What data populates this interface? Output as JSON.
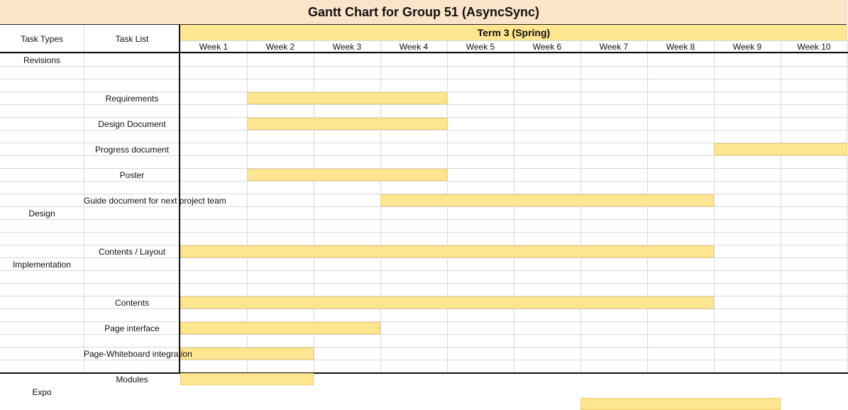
{
  "title": "Gantt Chart for Group 51 (AsyncSync)",
  "term_label": "Term 3 (Spring)",
  "headers": {
    "task_types": "Task Types",
    "task_list": "Task List"
  },
  "weeks": [
    "Week 1",
    "Week 2",
    "Week 3",
    "Week 4",
    "Week 5",
    "Week 6",
    "Week 7",
    "Week 8",
    "Week 9",
    "Week 10"
  ],
  "colors": {
    "title_bg": "#fce4c9",
    "term_bg": "#fee590",
    "bar": "#fee590"
  },
  "chart_data": {
    "type": "gantt",
    "title": "Gantt Chart for Group 51 (AsyncSync)",
    "period_label": "Term 3 (Spring)",
    "x_units": "weeks",
    "x_categories": [
      "Week 1",
      "Week 2",
      "Week 3",
      "Week 4",
      "Week 5",
      "Week 6",
      "Week 7",
      "Week 8",
      "Week 9",
      "Week 10"
    ],
    "rows": [
      {
        "type": "Revisions",
        "task": "",
        "start": null,
        "end": null
      },
      {
        "type": "",
        "task": "Requirements",
        "start": 2,
        "end": 4
      },
      {
        "type": "",
        "task": "Design Document",
        "start": 2,
        "end": 4
      },
      {
        "type": "",
        "task": "Progress document",
        "start": 9,
        "end": 10
      },
      {
        "type": "",
        "task": "Poster",
        "start": 2,
        "end": 4
      },
      {
        "type": "",
        "task": "Guide document for next project team",
        "start": 4,
        "end": 8
      },
      {
        "type": "Design",
        "task": "",
        "start": null,
        "end": null
      },
      {
        "type": "",
        "task": "Contents / Layout",
        "start": 1,
        "end": 8
      },
      {
        "type": "Implementation",
        "task": "",
        "start": null,
        "end": null
      },
      {
        "type": "",
        "task": "Contents",
        "start": 1,
        "end": 8
      },
      {
        "type": "",
        "task": "Page interface",
        "start": 1,
        "end": 3
      },
      {
        "type": "",
        "task": "Page-Whiteboard integration",
        "start": 1,
        "end": 2
      },
      {
        "type": "",
        "task": "Modules",
        "start": 1,
        "end": 2
      },
      {
        "type": "Expo",
        "task": "",
        "start": 7,
        "end": 9
      }
    ]
  }
}
